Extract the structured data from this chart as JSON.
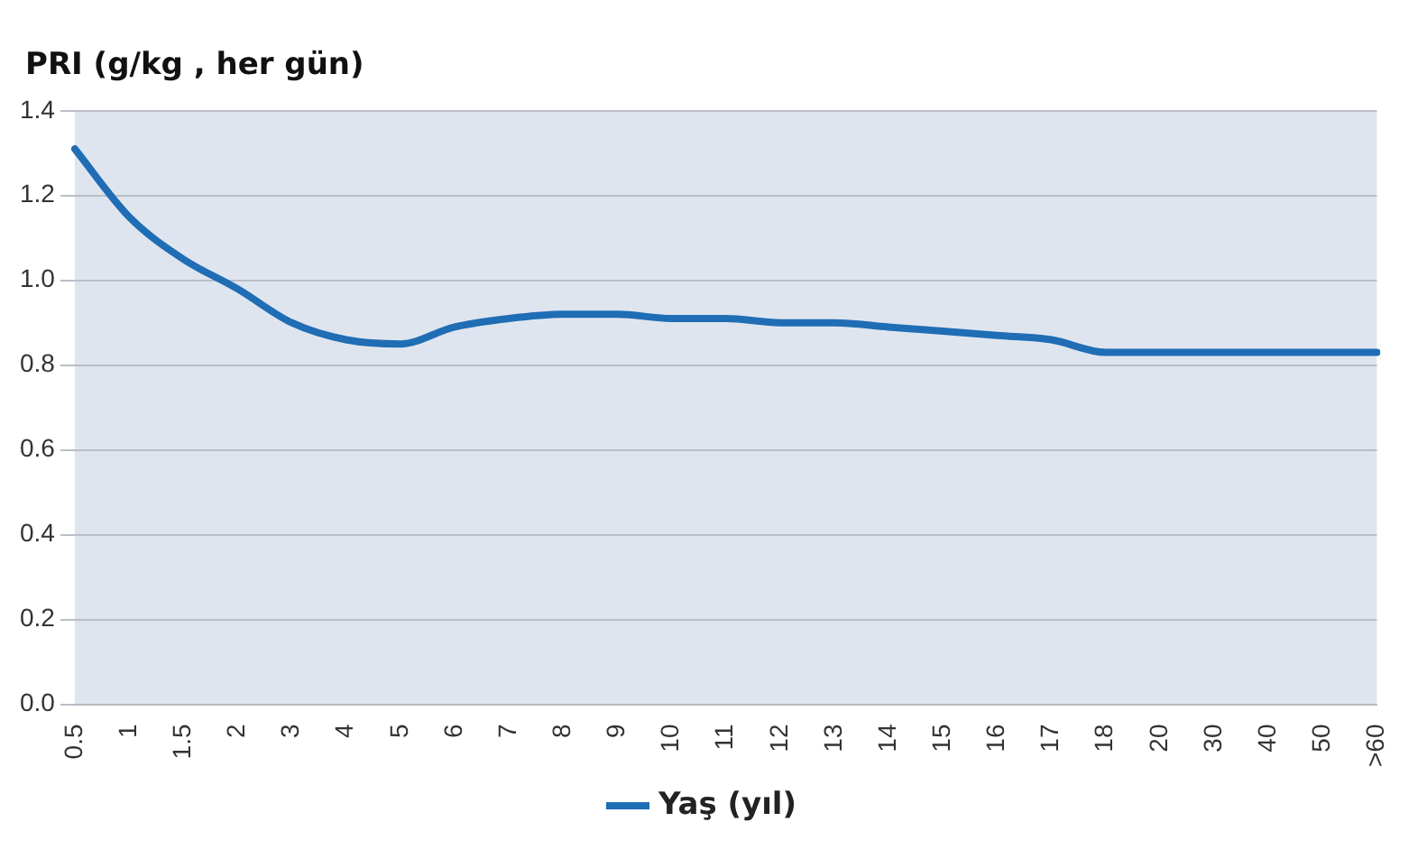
{
  "chart_data": {
    "type": "line",
    "ylabel": "PRI (g/kg , her gün)",
    "categories": [
      "0.5",
      "1",
      "1.5",
      "2",
      "3",
      "4",
      "5",
      "6",
      "7",
      "8",
      "9",
      "10",
      "11",
      "12",
      "13",
      "14",
      "15",
      "16",
      "17",
      "18",
      "20",
      "30",
      "40",
      "50",
      ">60"
    ],
    "series": [
      {
        "name": "Yaş (yıl)",
        "color": "#1f6db5",
        "values": [
          1.31,
          1.15,
          1.05,
          0.98,
          0.9,
          0.86,
          0.85,
          0.89,
          0.91,
          0.92,
          0.92,
          0.91,
          0.91,
          0.9,
          0.9,
          0.89,
          0.88,
          0.87,
          0.86,
          0.83,
          0.83,
          0.83,
          0.83,
          0.83,
          0.83
        ]
      }
    ],
    "ylim": [
      0,
      1.4
    ],
    "yticks": [
      {
        "value": 0,
        "label": "0.0"
      },
      0.2,
      0.4,
      0.6,
      0.8,
      {
        "value": 1,
        "label": "1.0"
      },
      1.2,
      1.4
    ],
    "grid": "y",
    "legend": "bottom",
    "marker": "none",
    "line_style": "solid"
  }
}
